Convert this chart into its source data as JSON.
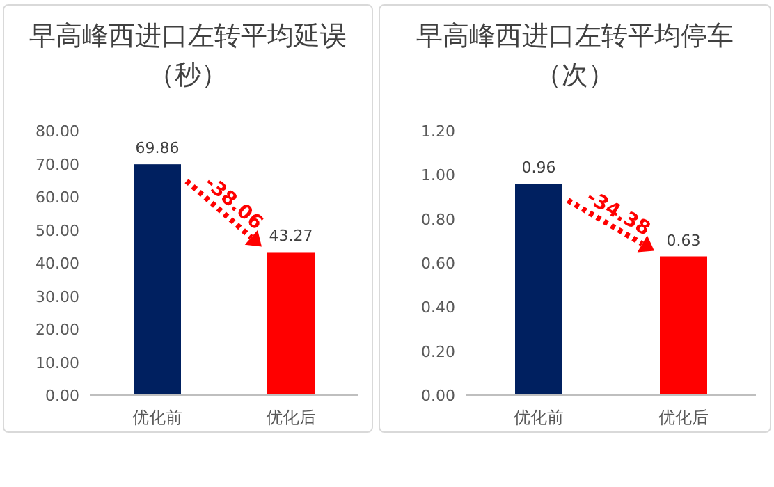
{
  "chart_data": [
    {
      "type": "bar",
      "title": "早高峰西进口左转平均延误（秒）",
      "categories": [
        "优化前",
        "优化后"
      ],
      "values": [
        69.86,
        43.27
      ],
      "colors": [
        "#002060",
        "#ff0000"
      ],
      "data_labels": true,
      "ylim": [
        0,
        80
      ],
      "yticks": [
        {
          "value": 0,
          "label": "0.00"
        },
        {
          "value": 10,
          "label": "10.00"
        },
        {
          "value": 20,
          "label": "20.00"
        },
        {
          "value": 30,
          "label": "30.00"
        },
        {
          "value": 40,
          "label": "40.00"
        },
        {
          "value": 50,
          "label": "50.00"
        },
        {
          "value": 60,
          "label": "60.00"
        },
        {
          "value": 70,
          "label": "70.00"
        },
        {
          "value": 80,
          "label": "80.00"
        }
      ],
      "annotations": [
        "-38.06"
      ]
    },
    {
      "type": "bar",
      "title": "早高峰西进口左转平均停车（次）",
      "categories": [
        "优化前",
        "优化后"
      ],
      "values": [
        0.96,
        0.63
      ],
      "colors": [
        "#002060",
        "#ff0000"
      ],
      "data_labels": true,
      "ylim": [
        0,
        1.2
      ],
      "yticks": [
        {
          "value": 0,
          "label": "0.00"
        },
        {
          "value": 0.2,
          "label": "0.20"
        },
        {
          "value": 0.4,
          "label": "0.40"
        },
        {
          "value": 0.6,
          "label": "0.60"
        },
        {
          "value": 0.8,
          "label": "0.80"
        },
        {
          "value": 1.0,
          "label": "1.00"
        },
        {
          "value": 1.2,
          "label": "1.20"
        }
      ],
      "annotations": [
        "-34.38"
      ]
    }
  ]
}
